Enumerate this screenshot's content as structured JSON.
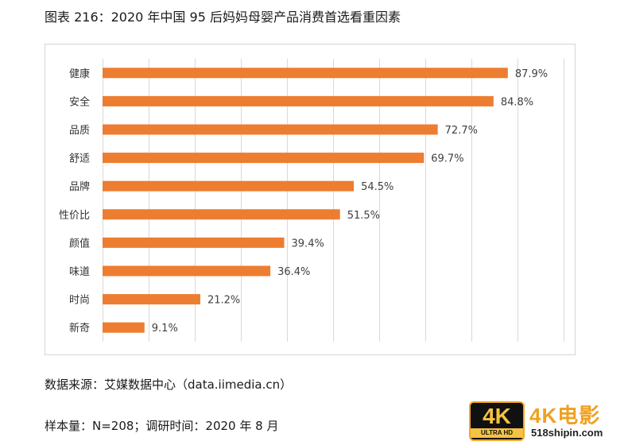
{
  "figure_title": "图表 216：2020 年中国 95 后妈妈母婴产品消费首选看重因素",
  "chart_data": {
    "type": "bar",
    "orientation": "horizontal",
    "categories": [
      "健康",
      "安全",
      "品质",
      "舒适",
      "品牌",
      "性价比",
      "颜值",
      "味道",
      "时尚",
      "新奇"
    ],
    "values": [
      87.9,
      84.8,
      72.7,
      69.7,
      54.5,
      51.5,
      39.4,
      36.4,
      21.2,
      9.1
    ],
    "value_labels": [
      "87.9%",
      "84.8%",
      "72.7%",
      "69.7%",
      "54.5%",
      "51.5%",
      "39.4%",
      "36.4%",
      "21.2%",
      "9.1%"
    ],
    "unit": "%",
    "xlim": [
      0,
      100
    ],
    "grid": "vertical",
    "bar_color": "#ED7D31",
    "title": "",
    "xlabel": "",
    "ylabel": ""
  },
  "source_text": "数据来源：艾媒数据中心（data.iimedia.cn）",
  "sample_text": "样本量：N=208；调研时间：2020 年 8 月",
  "watermark": {
    "badge_main": "4K",
    "badge_sub": "ULTRA HD",
    "brand": "4K电影",
    "url": "518shipin.com"
  }
}
